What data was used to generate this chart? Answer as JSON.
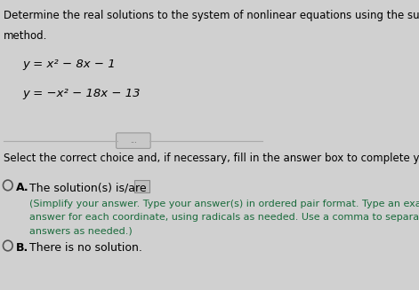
{
  "title_line1": "Determine the real solutions to the system of nonlinear equations using the substitution",
  "title_line2": "method.",
  "eq1": "y = x² − 8x − 1",
  "eq2": "y = −x² − 18x − 13",
  "divider_label": "...",
  "select_text": "Select the correct choice and, if necessary, fill in the answer box to complete your choice.",
  "choice_a_label": "A.",
  "choice_a_text": "The solution(s) is/are",
  "choice_a_sub1": "(Simplify your answer. Type your answer(s) in ordered pair format. Type an exact",
  "choice_a_sub2": "answer for each coordinate, using radicals as needed. Use a comma to separate",
  "choice_a_sub3": "answers as needed.)",
  "choice_b_label": "B.",
  "choice_b_text": "There is no solution.",
  "bg_color": "#d0d0d0",
  "text_color": "#000000",
  "eq_color": "#000000",
  "sub_text_color": "#1a6b3c",
  "title_fontsize": 8.5,
  "eq_fontsize": 9.5,
  "select_fontsize": 8.5,
  "choice_fontsize": 9.0,
  "sub_fontsize": 8.0
}
